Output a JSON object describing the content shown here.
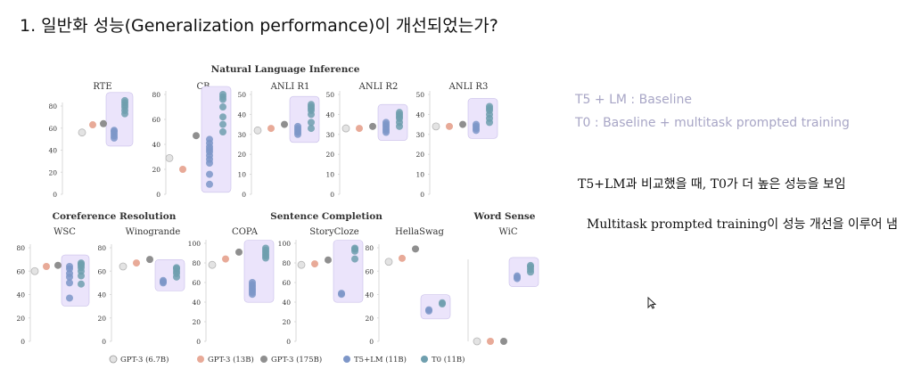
{
  "slide": {
    "title": "1. 일반화 성능(Generalization performance)이 개선되었는가?"
  },
  "notes": {
    "legend_line1": "T5 + LM : Baseline",
    "legend_line2": "T0 : Baseline + multitask prompted training",
    "point1": "T5+LM과 비교했을 때, T0가 더 높은 성능을 보임",
    "point2": "Multitask prompted training이 성능 개선을 이루어 냄"
  },
  "colors": {
    "gpt3_6_7b": "#e3e3e3",
    "gpt3_13b": "#e8aa98",
    "gpt3_175b": "#8f8f8f",
    "t5lm": "#7d96c8",
    "t0": "#6f9fae",
    "highlight": "#ebe4fb",
    "highlight_border": "#c9bfe9",
    "axis": "#d9d9d9",
    "text": "#333333"
  },
  "chart_data": {
    "type": "scatter",
    "legend": [
      {
        "key": "gpt3_6_7b",
        "label": "GPT-3 (6.7B)"
      },
      {
        "key": "gpt3_13b",
        "label": "GPT-3 (13B)"
      },
      {
        "key": "gpt3_175b",
        "label": "GPT-3 (175B)"
      },
      {
        "key": "t5lm",
        "label": "T5+LM (11B)"
      },
      {
        "key": "t0",
        "label": "T0 (11B)"
      }
    ],
    "groups": [
      {
        "name": "Natural Language Inference"
      },
      {
        "name": "Coreference Resolution"
      },
      {
        "name": "Sentence Completion"
      },
      {
        "name": "Word Sense"
      }
    ],
    "panels": [
      {
        "name": "RTE",
        "ylim": [
          0,
          80
        ],
        "ticks": [
          0,
          20,
          40,
          60,
          80
        ],
        "gpt3_6_7b": [
          56
        ],
        "gpt3_13b": [
          63
        ],
        "gpt3_175b": [
          64
        ],
        "t5lm": [
          51,
          53,
          55,
          57,
          58
        ],
        "t0": [
          73,
          76,
          79,
          81,
          83,
          85
        ]
      },
      {
        "name": "CB",
        "ylim": [
          0,
          80
        ],
        "ticks": [
          0,
          20,
          40,
          60,
          80
        ],
        "gpt3_6_7b": [
          29
        ],
        "gpt3_13b": [
          20
        ],
        "gpt3_175b": [
          47
        ],
        "t5lm": [
          8,
          16,
          25,
          28,
          31,
          34,
          36,
          38,
          41,
          44
        ],
        "t0": [
          50,
          56,
          62,
          70,
          76,
          78,
          80
        ]
      },
      {
        "name": "ANLI R1",
        "ylim": [
          0,
          50
        ],
        "ticks": [
          0,
          10,
          20,
          30,
          40,
          50
        ],
        "gpt3_6_7b": [
          32
        ],
        "gpt3_13b": [
          33
        ],
        "gpt3_175b": [
          35
        ],
        "t5lm": [
          30,
          31,
          32,
          33,
          34
        ],
        "t0": [
          33,
          36,
          40,
          42,
          43,
          44,
          45
        ]
      },
      {
        "name": "ANLI R2",
        "ylim": [
          0,
          50
        ],
        "ticks": [
          0,
          10,
          20,
          30,
          40,
          50
        ],
        "gpt3_6_7b": [
          33
        ],
        "gpt3_13b": [
          33
        ],
        "gpt3_175b": [
          34
        ],
        "t5lm": [
          31,
          32,
          33,
          34,
          35,
          36
        ],
        "t0": [
          34,
          36,
          38,
          39,
          40,
          41
        ]
      },
      {
        "name": "ANLI R3",
        "ylim": [
          0,
          50
        ],
        "ticks": [
          0,
          10,
          20,
          30,
          40,
          50
        ],
        "gpt3_6_7b": [
          34
        ],
        "gpt3_13b": [
          34
        ],
        "gpt3_175b": [
          35
        ],
        "t5lm": [
          32,
          33,
          34,
          35
        ],
        "t0": [
          36,
          38,
          40,
          42,
          43,
          44
        ]
      },
      {
        "name": "WSC",
        "ylim": [
          0,
          80
        ],
        "ticks": [
          0,
          20,
          40,
          60,
          80
        ],
        "gpt3_6_7b": [
          60
        ],
        "gpt3_13b": [
          64
        ],
        "gpt3_175b": [
          65
        ],
        "t5lm": [
          37,
          50,
          55,
          58,
          62,
          64
        ],
        "t0": [
          49,
          56,
          60,
          63,
          65,
          66,
          67
        ]
      },
      {
        "name": "Winogrande",
        "ylim": [
          0,
          80
        ],
        "ticks": [
          0,
          20,
          40,
          60,
          80
        ],
        "gpt3_6_7b": [
          64
        ],
        "gpt3_13b": [
          67
        ],
        "gpt3_175b": [
          70
        ],
        "t5lm": [
          50,
          51,
          52
        ],
        "t0": [
          55,
          58,
          60,
          62,
          63
        ]
      },
      {
        "name": "COPA",
        "ylim": [
          0,
          100
        ],
        "ticks": [
          0,
          20,
          40,
          60,
          80,
          100
        ],
        "gpt3_6_7b": [
          78
        ],
        "gpt3_13b": [
          84
        ],
        "gpt3_175b": [
          91
        ],
        "t5lm": [
          48,
          50,
          52,
          54,
          56,
          58,
          60
        ],
        "t0": [
          85,
          87,
          89,
          91,
          93,
          95
        ]
      },
      {
        "name": "StoryCloze",
        "ylim": [
          0,
          100
        ],
        "ticks": [
          0,
          20,
          40,
          60,
          80,
          100
        ],
        "gpt3_6_7b": [
          78
        ],
        "gpt3_13b": [
          79
        ],
        "gpt3_175b": [
          83
        ],
        "t5lm": [
          48,
          49
        ],
        "t0": [
          84,
          92,
          94,
          95
        ]
      },
      {
        "name": "HellaSwag",
        "ylim": [
          0,
          80
        ],
        "ticks": [
          0,
          20,
          40,
          60,
          80
        ],
        "gpt3_6_7b": [
          68
        ],
        "gpt3_13b": [
          71
        ],
        "gpt3_175b": [
          79
        ],
        "t5lm": [
          26,
          27
        ],
        "t0": [
          32,
          33
        ]
      },
      {
        "name": "WiC",
        "ylim": [
          0,
          60
        ],
        "ticks": [],
        "gpt3_6_7b": [
          0
        ],
        "gpt3_13b": [
          0
        ],
        "gpt3_175b": [
          0
        ],
        "t5lm": [
          48,
          49,
          50
        ],
        "t0": [
          53,
          55,
          57,
          58
        ]
      }
    ]
  }
}
